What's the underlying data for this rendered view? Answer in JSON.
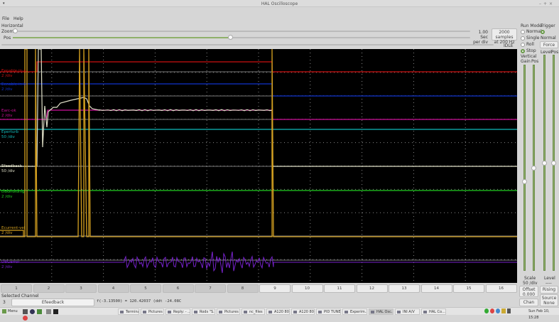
{
  "window": {
    "title": "HAL Oscilloscope",
    "controls": [
      "–",
      "+",
      "×"
    ]
  },
  "menu": [
    "File",
    "Help"
  ],
  "horizontal": {
    "label": "Horizontal",
    "zoom_label": "Zoom",
    "pos_label": "Pos",
    "zoom_fraction": 0.0,
    "pos_fraction": 0.81,
    "rate_line1": "1.00 Sec",
    "rate_line2": "per div",
    "samples_line1": "2000 samples",
    "samples_line2": "at 200 Hz",
    "status": "IDLE"
  },
  "run_mode": {
    "label": "Run Mode",
    "options": [
      "Normal",
      "Single",
      "Roll",
      "Stop"
    ],
    "selected": "Stop"
  },
  "trigger": {
    "label": "Trigger",
    "options": [
      "Normal",
      "Auto"
    ],
    "selected": "Normal",
    "force_label": "Force",
    "level_label": "Level",
    "pos_label": "Pos",
    "level_value": "Level",
    "level_readout": "----",
    "edge_label": "Rising",
    "source_label": "Source",
    "source_value": "None"
  },
  "vertical": {
    "label": "Vertical",
    "gain_label": "Gain",
    "pos_label": "Pos",
    "scale_label": "Scale",
    "scale_value": "50 /div",
    "offset_label": "Offset",
    "offset_value": "0.000",
    "chan_off_label": "Chan Off"
  },
  "channels": [
    {
      "name": "Eenable-in-a",
      "scale": "2 /div",
      "color": "#cc1111"
    },
    {
      "name": "Eenable-in-b",
      "scale": "2 /div",
      "color": "#1133cc"
    },
    {
      "name": "Earc-ok",
      "scale": "2 /div",
      "color": "#cc1199"
    },
    {
      "name": "Eperturb",
      "scale": "50 /div",
      "color": "#11bbbb"
    },
    {
      "name": "Efeedback",
      "scale": "50 /div",
      "color": "#e0e0c8"
    },
    {
      "name": "DBGholding",
      "scale": "2 /div",
      "color": "#22cc22"
    },
    {
      "name": "Ecurrent-vel",
      "scale": "2 /div",
      "color": "#d4a020"
    },
    {
      "name": "DBGerror",
      "scale": "2 /div",
      "color": "#7722cc"
    }
  ],
  "channel_buttons": [
    "1",
    "2",
    "3",
    "4",
    "5",
    "6",
    "7",
    "8",
    "9",
    "10",
    "11",
    "12",
    "13",
    "14",
    "15",
    "16"
  ],
  "selected_channel": {
    "label": "Selected Channel",
    "number": "3",
    "name": "Efeedback",
    "readout": "f(-3.13500) =  120.42037 (ddt -24.08C"
  },
  "taskbar": {
    "menu_label": "Menu",
    "items": [
      "Terminal",
      "Pictures",
      "Reply: - ...",
      "Rods \"S...",
      "Pictures",
      "nc_files",
      "A120 80...",
      "A120 80...",
      "PID TUNE",
      "Experim...",
      "HAL Osc...",
      "INI A/V",
      "HAL Co..."
    ],
    "active": "HAL Osc...",
    "clock": "Sun Feb 10, 15:28"
  }
}
